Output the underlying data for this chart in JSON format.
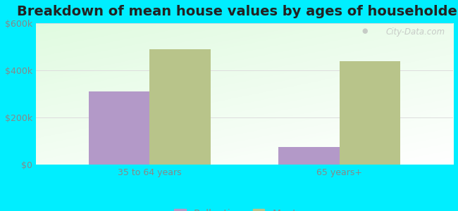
{
  "title": "Breakdown of mean house values by ages of householders",
  "categories": [
    "35 to 64 years",
    "65 years+"
  ],
  "series": {
    "Ballantine": [
      310000,
      75000
    ],
    "Montana": [
      490000,
      440000
    ]
  },
  "bar_colors": {
    "Ballantine": "#b399c8",
    "Montana": "#b8c48a"
  },
  "ylim": [
    0,
    600000
  ],
  "yticks": [
    0,
    200000,
    400000,
    600000
  ],
  "ytick_labels": [
    "$0",
    "$200k",
    "$400k",
    "$600k"
  ],
  "background_color": "#00eeff",
  "title_fontsize": 14,
  "tick_fontsize": 9,
  "legend_fontsize": 10,
  "bar_width": 0.32,
  "watermark": "City-Data.com"
}
